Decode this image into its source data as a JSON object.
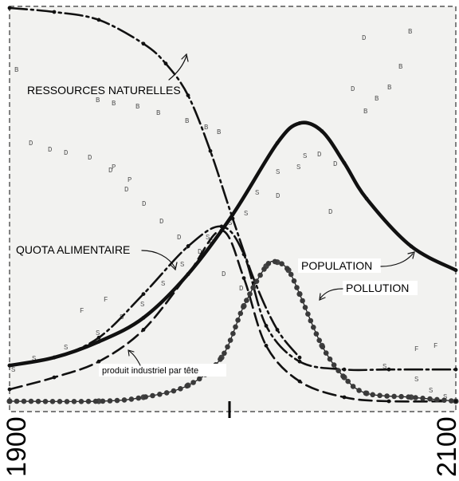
{
  "chart_data": {
    "type": "line",
    "title": "",
    "xlabel": "",
    "ylabel": "",
    "xlim": [
      1900,
      2100
    ],
    "ylim": [
      0,
      1
    ],
    "x_tick_labels": [
      "1900",
      "2100"
    ],
    "midpoint_tick_year": 2000,
    "series": [
      {
        "name": "RESSOURCES NATURELLES",
        "style": "dash-dot",
        "x": [
          1900,
          1920,
          1940,
          1960,
          1970,
          1980,
          1990,
          2000,
          2010,
          2020,
          2030
        ],
        "y": [
          1.0,
          0.99,
          0.97,
          0.91,
          0.86,
          0.78,
          0.64,
          0.47,
          0.31,
          0.19,
          0.12
        ]
      },
      {
        "name": "POPULATION",
        "style": "thick",
        "x": [
          1900,
          1920,
          1940,
          1960,
          1980,
          2000,
          2020,
          2030,
          2040,
          2050,
          2060,
          2080,
          2100
        ],
        "y": [
          0.1,
          0.12,
          0.16,
          0.22,
          0.33,
          0.48,
          0.66,
          0.71,
          0.69,
          0.61,
          0.52,
          0.4,
          0.34
        ]
      },
      {
        "name": "QUOTA ALIMENTAIRE",
        "style": "dash-dot",
        "x": [
          1900,
          1920,
          1940,
          1960,
          1980,
          1995,
          2005,
          2015,
          2030,
          2050,
          2070,
          2100
        ],
        "y": [
          0.1,
          0.12,
          0.17,
          0.28,
          0.4,
          0.45,
          0.38,
          0.2,
          0.11,
          0.09,
          0.09,
          0.09
        ]
      },
      {
        "name": "POLLUTION",
        "style": "dotted",
        "x": [
          1900,
          1940,
          1960,
          1980,
          1995,
          2005,
          2015,
          2020,
          2025,
          2030,
          2040,
          2050,
          2060,
          2080,
          2100
        ],
        "y": [
          0.01,
          0.01,
          0.02,
          0.05,
          0.12,
          0.25,
          0.35,
          0.36,
          0.34,
          0.28,
          0.15,
          0.07,
          0.03,
          0.02,
          0.01
        ]
      },
      {
        "name": "produit industriel par tête",
        "style": "dash",
        "x": [
          1900,
          1920,
          1940,
          1960,
          1980,
          1995,
          2005,
          2015,
          2030,
          2050,
          2070,
          2100
        ],
        "y": [
          0.04,
          0.07,
          0.11,
          0.19,
          0.33,
          0.44,
          0.32,
          0.15,
          0.06,
          0.02,
          0.01,
          0.01
        ]
      }
    ],
    "annotations": [
      "RESSOURCES NATURELLES",
      "QUOTA ALIMENTAIRE",
      "POPULATION",
      "POLLUTION",
      "produit industriel par tête"
    ],
    "grid": false,
    "legend": "none"
  }
}
